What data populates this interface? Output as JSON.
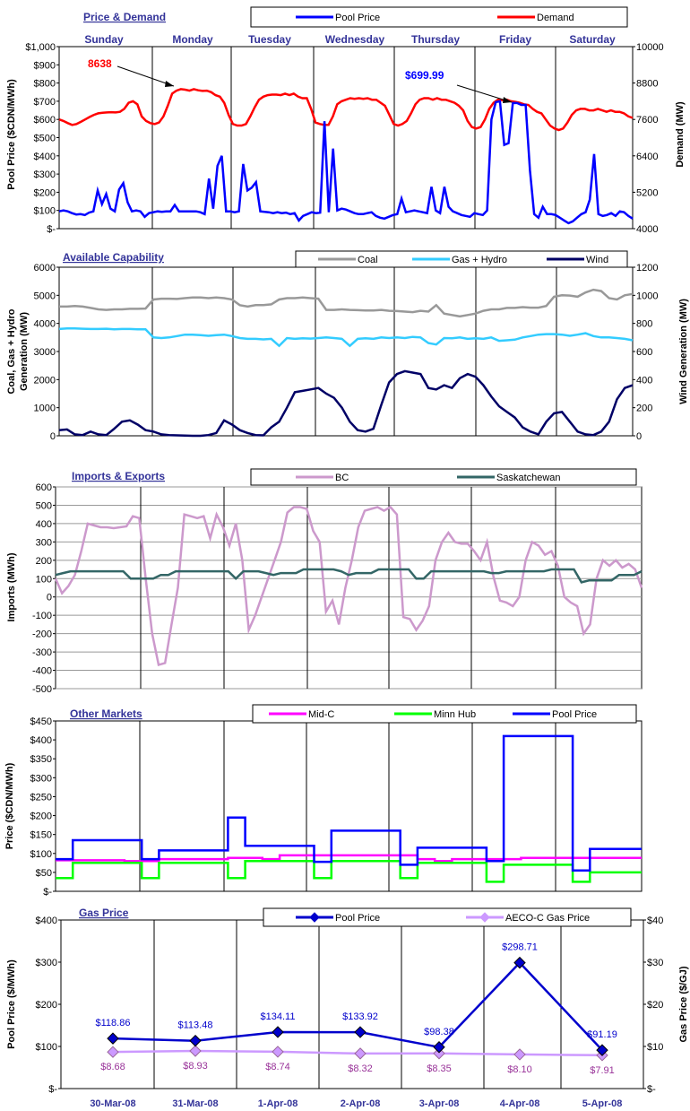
{
  "colors": {
    "pool": "#0000ff",
    "demand": "#ff0000",
    "coal": "#999999",
    "gashydro": "#33ccff",
    "wind": "#000066",
    "bc": "#cc99cc",
    "sask": "#336666",
    "midc": "#ff00ff",
    "minn": "#00ff00",
    "gas_pool": "#0000cc",
    "aeco": "#cc99ff",
    "title": "#333399",
    "label_purple": "#993399",
    "grid": "#999999"
  },
  "chart_data": [
    {
      "type": "line",
      "title": "Price & Demand",
      "ylabel": "Pool Price ($CDN/MWh)",
      "y2label": "Demand (MW)",
      "days": [
        "Sunday",
        "Monday",
        "Tuesday",
        "Wednesday",
        "Thursday",
        "Friday",
        "Saturday"
      ],
      "yticks": [
        "$-",
        "$100",
        "$200",
        "$300",
        "$400",
        "$500",
        "$600",
        "$700",
        "$800",
        "$900",
        "$1,000"
      ],
      "y2ticks": [
        "4000",
        "5200",
        "6400",
        "7600",
        "8800",
        "10000"
      ],
      "ylim": [
        0,
        1000
      ],
      "y2lim": [
        4000,
        10000
      ],
      "legend": [
        "Pool Price",
        "Demand"
      ],
      "annotations": [
        {
          "text": "8638",
          "series": "Demand"
        },
        {
          "text": "$699.99",
          "series": "Pool Price"
        }
      ],
      "series": [
        {
          "name": "Pool Price",
          "axis": "left",
          "values": [
            95,
            100,
            95,
            85,
            78,
            80,
            75,
            88,
            95,
            210,
            135,
            190,
            110,
            95,
            215,
            250,
            145,
            95,
            100,
            95,
            65,
            85,
            90,
            95,
            92,
            95,
            95,
            130,
            95,
            95,
            95,
            95,
            95,
            90,
            80,
            275,
            110,
            345,
            400,
            95,
            95,
            90,
            95,
            355,
            210,
            225,
            255,
            95,
            92,
            90,
            85,
            90,
            85,
            88,
            80,
            85,
            45,
            70,
            80,
            90,
            85,
            88,
            590,
            90,
            440,
            100,
            110,
            105,
            95,
            85,
            80,
            80,
            85,
            90,
            70,
            60,
            55,
            65,
            75,
            80,
            165,
            90,
            95,
            100,
            95,
            90,
            85,
            230,
            100,
            85,
            230,
            120,
            95,
            85,
            75,
            70,
            65,
            85,
            80,
            75,
            100,
            600,
            695,
            700,
            460,
            470,
            690,
            690,
            680,
            680,
            320,
            80,
            60,
            120,
            80,
            80,
            75,
            60,
            45,
            30,
            40,
            60,
            80,
            90,
            160,
            410,
            80,
            70,
            75,
            85,
            70,
            95,
            90,
            70,
            55
          ]
        },
        {
          "name": "Demand",
          "axis": "right",
          "values": [
            7600,
            7550,
            7480,
            7420,
            7450,
            7520,
            7600,
            7680,
            7750,
            7800,
            7820,
            7830,
            7840,
            7830,
            7850,
            7950,
            8150,
            8200,
            8100,
            7700,
            7550,
            7480,
            7450,
            7500,
            7700,
            8050,
            8450,
            8550,
            8600,
            8580,
            8550,
            8600,
            8560,
            8540,
            8550,
            8500,
            8400,
            8350,
            8150,
            7750,
            7450,
            7400,
            7400,
            7450,
            7700,
            8000,
            8250,
            8350,
            8400,
            8420,
            8420,
            8400,
            8450,
            8400,
            8450,
            8350,
            8300,
            8300,
            7950,
            7500,
            7450,
            7420,
            7420,
            7700,
            8100,
            8200,
            8250,
            8300,
            8280,
            8300,
            8280,
            8300,
            8250,
            8250,
            8150,
            8050,
            7750,
            7450,
            7400,
            7450,
            7550,
            7800,
            8100,
            8250,
            8300,
            8300,
            8250,
            8300,
            8250,
            8250,
            8200,
            8150,
            8050,
            7900,
            7550,
            7350,
            7300,
            7350,
            7600,
            7950,
            8150,
            8250,
            8230,
            8250,
            8200,
            8180,
            8150,
            8100,
            8080,
            7950,
            7850,
            7800,
            7600,
            7400,
            7300,
            7250,
            7300,
            7500,
            7750,
            7900,
            7950,
            7950,
            7900,
            7900,
            7950,
            7900,
            7850,
            7900,
            7850,
            7850,
            7800,
            7700,
            7650
          ]
        }
      ]
    },
    {
      "type": "line",
      "title": "Available Capability",
      "ylabel": "Coal, Gas + Hydro Generation (MW)",
      "y2label": "Wind Generation (MW)",
      "yticks": [
        "0",
        "1000",
        "2000",
        "3000",
        "4000",
        "5000",
        "6000"
      ],
      "y2ticks": [
        "0",
        "200",
        "400",
        "600",
        "800",
        "1000",
        "1200"
      ],
      "ylim": [
        0,
        6000
      ],
      "y2lim": [
        0,
        1200
      ],
      "legend": [
        "Coal",
        "Gas + Hydro",
        "Wind"
      ],
      "series": [
        {
          "name": "Coal",
          "axis": "left",
          "values": [
            4600,
            4600,
            4620,
            4600,
            4550,
            4500,
            4480,
            4500,
            4500,
            4520,
            4520,
            4530,
            4850,
            4880,
            4880,
            4870,
            4900,
            4920,
            4920,
            4900,
            4920,
            4900,
            4850,
            4650,
            4600,
            4650,
            4650,
            4680,
            4850,
            4900,
            4900,
            4920,
            4900,
            4880,
            4480,
            4480,
            4500,
            4480,
            4470,
            4460,
            4460,
            4480,
            4450,
            4440,
            4420,
            4400,
            4450,
            4420,
            4650,
            4350,
            4300,
            4250,
            4300,
            4350,
            4450,
            4500,
            4500,
            4550,
            4550,
            4580,
            4560,
            4560,
            4620,
            4950,
            5000,
            4990,
            4950,
            5100,
            5200,
            5150,
            4900,
            4850,
            5000,
            5050
          ]
        },
        {
          "name": "Gas + Hydro",
          "axis": "left",
          "values": [
            3800,
            3820,
            3820,
            3810,
            3800,
            3800,
            3810,
            3790,
            3800,
            3800,
            3790,
            3790,
            3500,
            3480,
            3500,
            3550,
            3600,
            3600,
            3580,
            3560,
            3580,
            3600,
            3550,
            3480,
            3450,
            3450,
            3430,
            3450,
            3200,
            3480,
            3450,
            3470,
            3460,
            3480,
            3500,
            3480,
            3450,
            3200,
            3450,
            3470,
            3450,
            3500,
            3480,
            3500,
            3480,
            3520,
            3500,
            3300,
            3250,
            3480,
            3470,
            3500,
            3450,
            3470,
            3450,
            3500,
            3380,
            3400,
            3420,
            3500,
            3550,
            3600,
            3620,
            3620,
            3600,
            3560,
            3600,
            3650,
            3550,
            3500,
            3500,
            3480,
            3450,
            3400
          ]
        },
        {
          "name": "Wind",
          "axis": "right",
          "values": [
            40,
            45,
            10,
            5,
            30,
            10,
            5,
            50,
            100,
            110,
            80,
            40,
            30,
            10,
            5,
            3,
            1,
            0,
            0,
            5,
            20,
            110,
            80,
            40,
            20,
            5,
            3,
            60,
            100,
            200,
            310,
            320,
            330,
            340,
            300,
            270,
            200,
            100,
            40,
            30,
            50,
            220,
            380,
            440,
            460,
            450,
            440,
            340,
            330,
            360,
            340,
            410,
            440,
            420,
            360,
            280,
            210,
            170,
            130,
            60,
            30,
            10,
            100,
            160,
            170,
            100,
            30,
            10,
            5,
            30,
            100,
            260,
            340,
            360
          ]
        }
      ]
    },
    {
      "type": "line",
      "title": "Imports & Exports",
      "ylabel": "Imports (MWh)",
      "yticks": [
        "-500",
        "-400",
        "-300",
        "-200",
        "-100",
        "0",
        "100",
        "200",
        "300",
        "400",
        "500",
        "600"
      ],
      "ylim": [
        -500,
        600
      ],
      "legend": [
        "BC",
        "Saskatchewan"
      ],
      "series": [
        {
          "name": "BC",
          "values": [
            100,
            20,
            60,
            120,
            250,
            400,
            390,
            380,
            380,
            375,
            380,
            385,
            440,
            430,
            100,
            -200,
            -370,
            -360,
            -150,
            50,
            450,
            440,
            430,
            440,
            320,
            450,
            380,
            280,
            400,
            200,
            -180,
            -100,
            0,
            100,
            200,
            300,
            460,
            490,
            490,
            480,
            360,
            300,
            -80,
            -20,
            -150,
            50,
            200,
            380,
            470,
            480,
            490,
            470,
            490,
            450,
            -110,
            -120,
            -180,
            -130,
            -50,
            200,
            300,
            350,
            300,
            290,
            290,
            250,
            200,
            300,
            110,
            -20,
            -30,
            -50,
            0,
            200,
            300,
            280,
            230,
            250,
            170,
            0,
            -30,
            -50,
            -200,
            -150,
            100,
            200,
            170,
            200,
            160,
            180,
            150,
            50
          ]
        },
        {
          "name": "Saskatchewan",
          "values": [
            120,
            130,
            140,
            140,
            140,
            140,
            140,
            140,
            140,
            140,
            100,
            100,
            100,
            100,
            120,
            120,
            140,
            140,
            140,
            140,
            140,
            140,
            140,
            140,
            100,
            140,
            140,
            140,
            130,
            120,
            130,
            130,
            130,
            150,
            150,
            150,
            150,
            150,
            140,
            120,
            130,
            130,
            130,
            150,
            150,
            150,
            150,
            150,
            100,
            100,
            140,
            140,
            140,
            140,
            140,
            140,
            140,
            140,
            130,
            130,
            140,
            140,
            140,
            140,
            140,
            140,
            150,
            150,
            150,
            150,
            80,
            90,
            90,
            90,
            90,
            120,
            120,
            120,
            140
          ]
        }
      ]
    },
    {
      "type": "line",
      "title": "Other Markets",
      "ylabel": "Price ($CDN/MWh)",
      "yticks": [
        "$-",
        "$50",
        "$100",
        "$150",
        "$200",
        "$250",
        "$300",
        "$350",
        "$400",
        "$450"
      ],
      "ylim": [
        0,
        450
      ],
      "legend": [
        "Mid-C",
        "Minn Hub",
        "Pool Price"
      ],
      "series": [
        {
          "name": "Mid-C",
          "values": [
            82,
            82,
            82,
            82,
            80,
            80,
            85,
            85,
            85,
            85,
            88,
            88,
            85,
            95,
            95,
            95,
            95,
            95,
            95,
            95,
            95,
            85,
            80,
            85,
            85,
            85,
            85,
            88,
            88,
            88,
            88,
            88,
            88,
            88
          ]
        },
        {
          "name": "Minn Hub",
          "values": [
            35,
            75,
            75,
            75,
            75,
            35,
            75,
            75,
            75,
            75,
            35,
            80,
            80,
            80,
            80,
            35,
            80,
            80,
            80,
            80,
            35,
            75,
            75,
            75,
            75,
            25,
            70,
            70,
            70,
            70,
            25,
            50,
            50,
            50
          ]
        },
        {
          "name": "Pool Price",
          "values": [
            85,
            135,
            135,
            135,
            135,
            85,
            108,
            108,
            108,
            108,
            195,
            120,
            120,
            120,
            120,
            78,
            160,
            160,
            160,
            160,
            70,
            115,
            115,
            115,
            115,
            80,
            410,
            410,
            410,
            410,
            55,
            112,
            112,
            112
          ]
        }
      ]
    },
    {
      "type": "line",
      "title": "Gas Price",
      "ylabel": "Pool Price ($/MWh)",
      "y2label": "Gas Price ($/GJ)",
      "categories": [
        "30-Mar-08",
        "31-Mar-08",
        "1-Apr-08",
        "2-Apr-08",
        "3-Apr-08",
        "4-Apr-08",
        "5-Apr-08"
      ],
      "yticks": [
        "$-",
        "$100",
        "$200",
        "$300",
        "$400"
      ],
      "y2ticks": [
        "$-",
        "$10",
        "$20",
        "$30",
        "$40"
      ],
      "ylim": [
        0,
        400
      ],
      "y2lim": [
        0,
        40
      ],
      "legend": [
        "Pool Price",
        "AECO-C Gas Price"
      ],
      "series": [
        {
          "name": "Pool Price",
          "axis": "left",
          "values": [
            118.86,
            113.48,
            134.11,
            133.92,
            98.38,
            298.71,
            91.19
          ],
          "labels": [
            "$118.86",
            "$113.48",
            "$134.11",
            "$133.92",
            "$98.38",
            "$298.71",
            "$91.19"
          ]
        },
        {
          "name": "AECO-C Gas Price",
          "axis": "right",
          "values": [
            8.68,
            8.93,
            8.74,
            8.32,
            8.35,
            8.1,
            7.91
          ],
          "labels": [
            "$8.68",
            "$8.93",
            "$8.74",
            "$8.32",
            "$8.35",
            "$8.10",
            "$7.91"
          ]
        }
      ]
    }
  ]
}
